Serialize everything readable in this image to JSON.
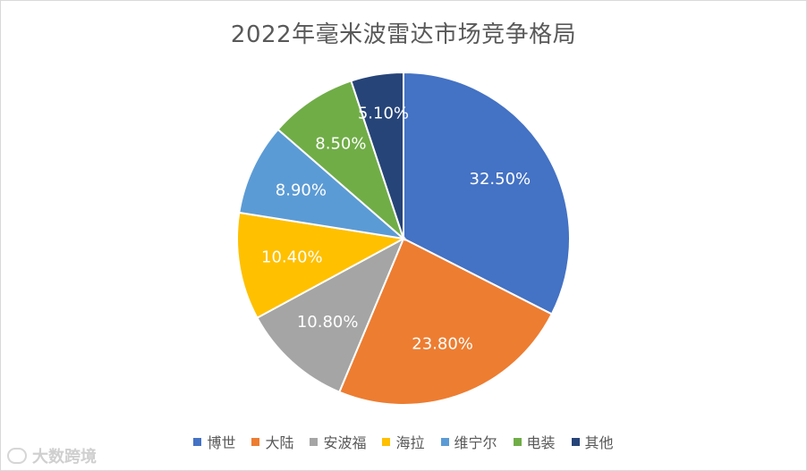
{
  "chart_data": {
    "type": "pie",
    "title": "2022年毫米波雷达市场竞争格局",
    "categories": [
      "博世",
      "大陆",
      "安波福",
      "海拉",
      "维宁尔",
      "电装",
      "其他"
    ],
    "values": [
      32.5,
      23.8,
      10.8,
      10.4,
      8.9,
      8.5,
      5.1
    ],
    "labels": [
      "32.50%",
      "23.80%",
      "10.80%",
      "10.40%",
      "8.90%",
      "8.50%",
      "5.10%"
    ],
    "colors": [
      "#4472C4",
      "#ED7D31",
      "#A5A5A5",
      "#FFC000",
      "#5B9BD5",
      "#70AD47",
      "#264478"
    ],
    "legend_position": "bottom"
  },
  "watermark": {
    "text": "大数跨境"
  }
}
